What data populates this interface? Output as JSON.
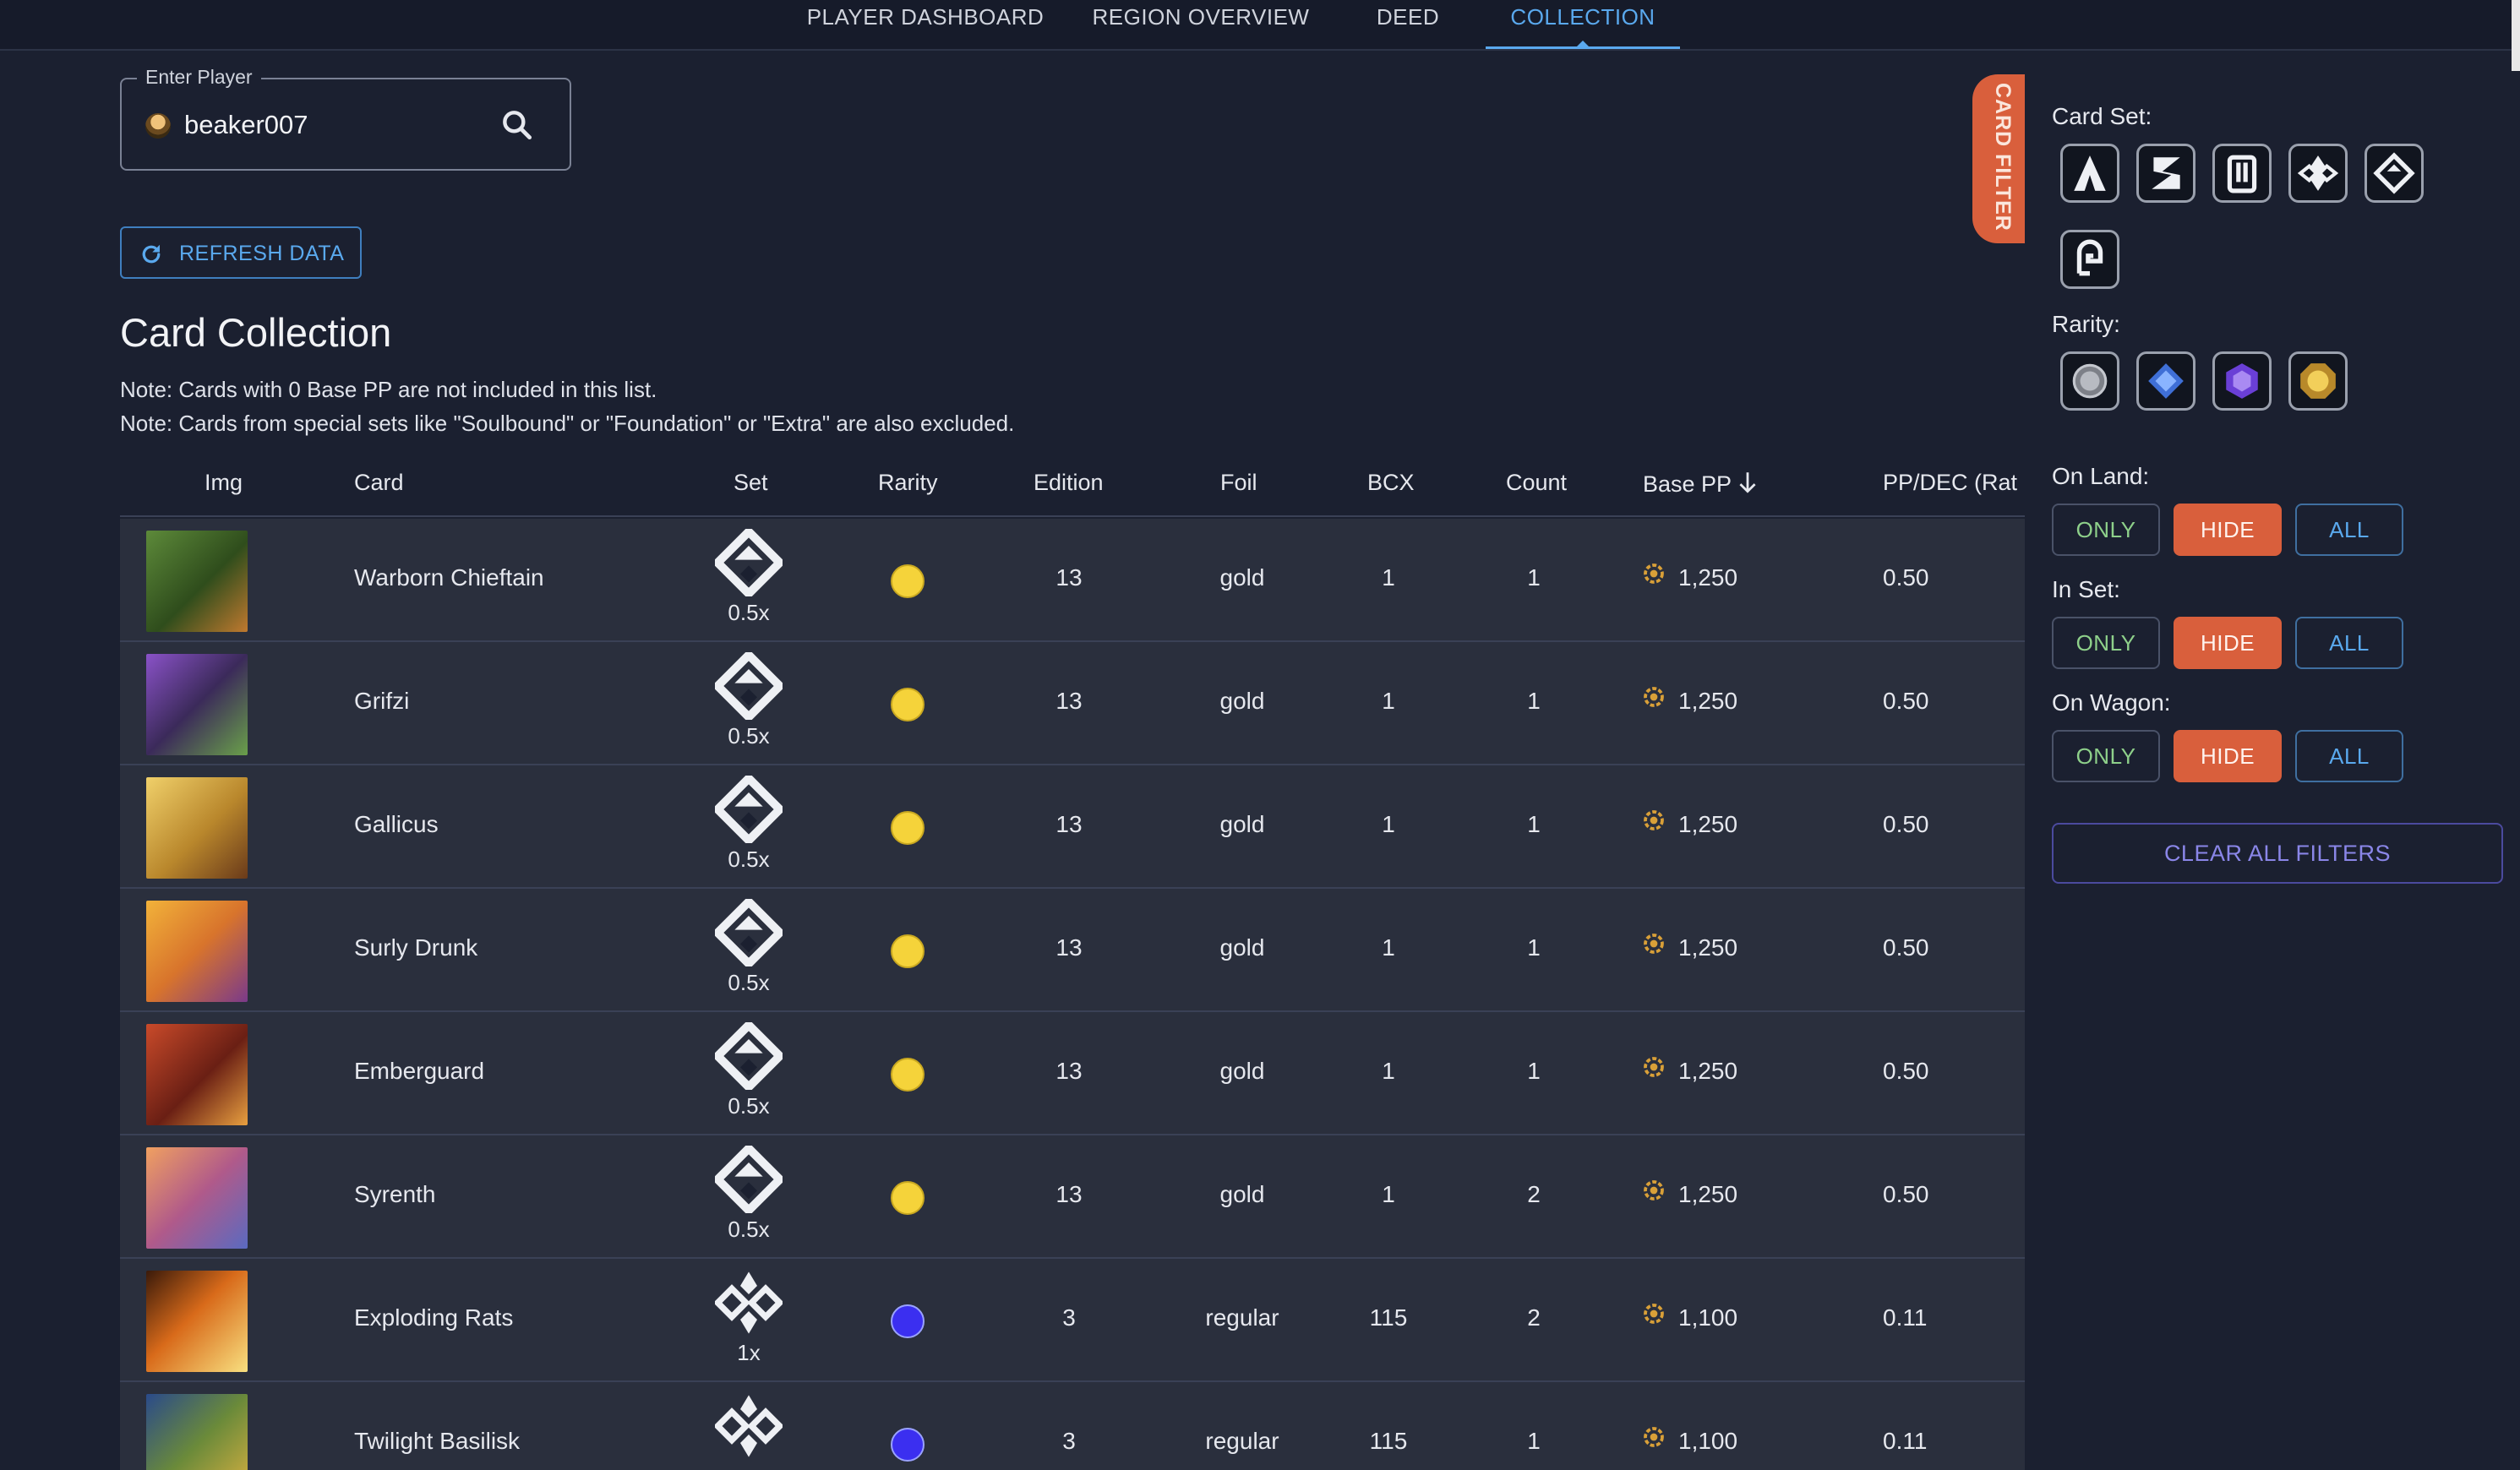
{
  "nav": {
    "tabs": [
      {
        "label": "PLAYER DASHBOARD"
      },
      {
        "label": "REGION OVERVIEW"
      },
      {
        "label": "DEED"
      },
      {
        "label": "COLLECTION"
      }
    ],
    "active": "COLLECTION"
  },
  "player": {
    "legend": "Enter Player",
    "value": "beaker007"
  },
  "refresh": {
    "label": "REFRESH DATA"
  },
  "page": {
    "title": "Card Collection",
    "notes": [
      "Note: Cards with 0 Base PP are not included in this list.",
      "Note: Cards from special sets like \"Soulbound\" or \"Foundation\" or \"Extra\" are also excluded."
    ]
  },
  "table": {
    "headers": [
      "Img",
      "Card",
      "Set",
      "Rarity",
      "Edition",
      "Foil",
      "BCX",
      "Count",
      "Base PP",
      "PP/DEC (Rat"
    ],
    "sort_column": "Base PP",
    "sort_direction": "descending",
    "rows": [
      {
        "card": "Warborn Chieftain",
        "set_icon": "set-icon-a",
        "mult": "0.5x",
        "rarity": "gold",
        "edition": "13",
        "foil": "gold",
        "bcx": "1",
        "count": "1",
        "base_pp": "1,250",
        "pp_dec": "0.50"
      },
      {
        "card": "Grifzi",
        "set_icon": "set-icon-a",
        "mult": "0.5x",
        "rarity": "gold",
        "edition": "13",
        "foil": "gold",
        "bcx": "1",
        "count": "1",
        "base_pp": "1,250",
        "pp_dec": "0.50"
      },
      {
        "card": "Gallicus",
        "set_icon": "set-icon-a",
        "mult": "0.5x",
        "rarity": "gold",
        "edition": "13",
        "foil": "gold",
        "bcx": "1",
        "count": "1",
        "base_pp": "1,250",
        "pp_dec": "0.50"
      },
      {
        "card": "Surly Drunk",
        "set_icon": "set-icon-a",
        "mult": "0.5x",
        "rarity": "gold",
        "edition": "13",
        "foil": "gold",
        "bcx": "1",
        "count": "1",
        "base_pp": "1,250",
        "pp_dec": "0.50"
      },
      {
        "card": "Emberguard",
        "set_icon": "set-icon-a",
        "mult": "0.5x",
        "rarity": "gold",
        "edition": "13",
        "foil": "gold",
        "bcx": "1",
        "count": "1",
        "base_pp": "1,250",
        "pp_dec": "0.50"
      },
      {
        "card": "Syrenth",
        "set_icon": "set-icon-a",
        "mult": "0.5x",
        "rarity": "gold",
        "edition": "13",
        "foil": "gold",
        "bcx": "1",
        "count": "2",
        "base_pp": "1,250",
        "pp_dec": "0.50"
      },
      {
        "card": "Exploding Rats",
        "set_icon": "set-icon-b",
        "mult": "1x",
        "rarity": "blue",
        "edition": "3",
        "foil": "regular",
        "bcx": "115",
        "count": "2",
        "base_pp": "1,100",
        "pp_dec": "0.11"
      },
      {
        "card": "Twilight Basilisk",
        "set_icon": "set-icon-b",
        "mult": "",
        "rarity": "blue",
        "edition": "3",
        "foil": "regular",
        "bcx": "115",
        "count": "1",
        "base_pp": "1,100",
        "pp_dec": "0.11"
      }
    ]
  },
  "filter": {
    "tab_label": "CARD FILTER",
    "card_set_label": "Card Set:",
    "rarity_label": "Rarity:",
    "on_land": {
      "label": "On Land:",
      "only": "ONLY",
      "hide": "HIDE",
      "all": "ALL"
    },
    "in_set": {
      "label": "In Set:",
      "only": "ONLY",
      "hide": "HIDE",
      "all": "ALL"
    },
    "on_wagon": {
      "label": "On Wagon:",
      "only": "ONLY",
      "hide": "HIDE",
      "all": "ALL"
    },
    "clear": "CLEAR ALL FILTERS"
  },
  "colors": {
    "accent": "#5aa9ee",
    "hide_active": "#d95f3c",
    "rarity_gold": "#f5d33a",
    "rarity_blue": "#3b2ff0"
  }
}
